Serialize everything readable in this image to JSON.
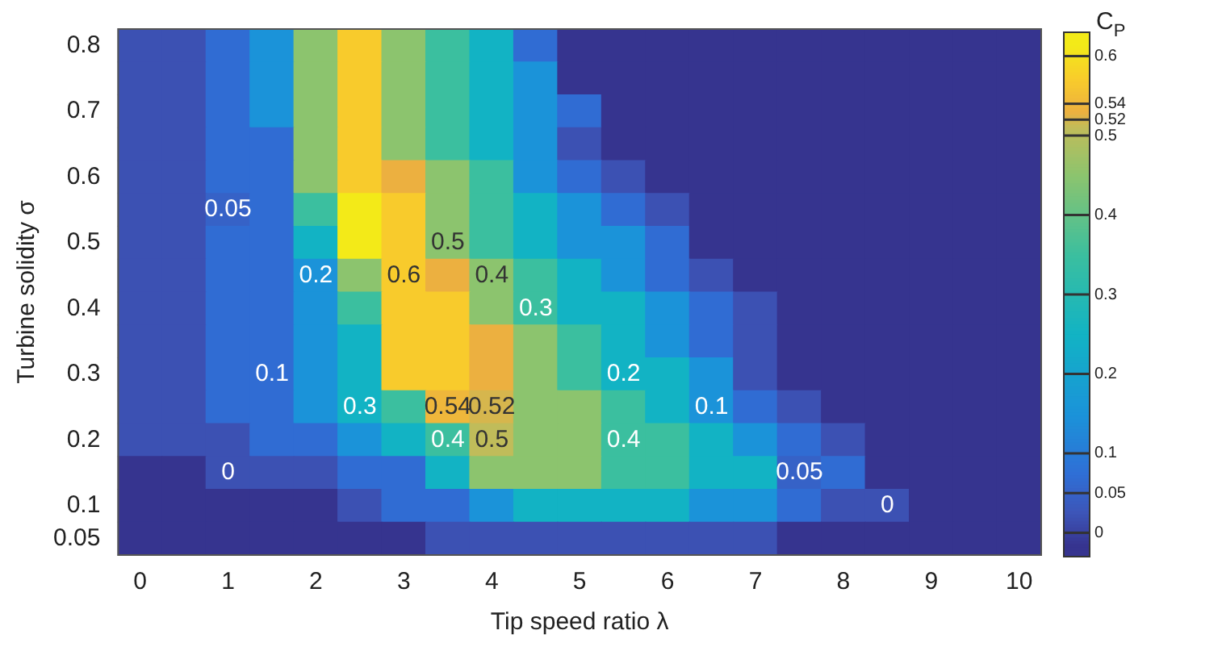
{
  "chart_data": {
    "type": "heatmap",
    "xlabel": "Tip speed ratio λ",
    "ylabel": "Turbine solidity σ",
    "clabel": "C$_{P}$",
    "categories": [
      "0",
      null,
      "1",
      null,
      "2",
      null,
      "3",
      null,
      "4",
      null,
      "5",
      null,
      "6",
      null,
      "7",
      null,
      "8",
      null,
      "9",
      null,
      "10"
    ],
    "y_categories": [
      "0.8",
      null,
      "0.7",
      null,
      "0.6",
      null,
      "0.5",
      null,
      "0.4",
      null,
      "0.3",
      null,
      "0.2",
      null,
      "0.1",
      "0.05"
    ],
    "clim": [
      -0.03,
      0.63
    ],
    "cticks": [
      0,
      0.05,
      0.1,
      0.2,
      0.3,
      0.4,
      0.5,
      0.52,
      0.54,
      0.6
    ],
    "colors": [
      "#36348f",
      "#3d55b8",
      "#2f6fd6",
      "#1b93d9",
      "#12b3c4",
      "#3bbf9f",
      "#8cc46e",
      "#c0bc5a",
      "#ecb040",
      "#f8cb2c",
      "#f3ea18"
    ],
    "cells": [
      [
        0.02,
        0.02,
        0.07,
        0.15,
        0.45,
        0.57,
        0.45,
        0.35,
        0.25,
        0.07,
        -0.02,
        -0.02,
        -0.02,
        -0.02,
        -0.02,
        -0.02,
        -0.02,
        -0.02,
        -0.02,
        -0.02,
        -0.02
      ],
      [
        0.02,
        0.02,
        0.07,
        0.15,
        0.45,
        0.57,
        0.45,
        0.35,
        0.25,
        0.15,
        -0.02,
        -0.02,
        -0.02,
        -0.02,
        -0.02,
        -0.02,
        -0.02,
        -0.02,
        -0.02,
        -0.02,
        -0.02
      ],
      [
        0.02,
        0.02,
        0.07,
        0.15,
        0.45,
        0.57,
        0.45,
        0.35,
        0.25,
        0.15,
        0.07,
        -0.02,
        -0.02,
        -0.02,
        -0.02,
        -0.02,
        -0.02,
        -0.02,
        -0.02,
        -0.02,
        -0.02
      ],
      [
        0.02,
        0.02,
        0.07,
        0.07,
        0.45,
        0.57,
        0.45,
        0.35,
        0.25,
        0.15,
        0.02,
        -0.02,
        -0.02,
        -0.02,
        -0.02,
        -0.02,
        -0.02,
        -0.02,
        -0.02,
        -0.02,
        -0.02
      ],
      [
        0.02,
        0.02,
        0.07,
        0.07,
        0.45,
        0.57,
        0.53,
        0.45,
        0.35,
        0.15,
        0.07,
        0.02,
        -0.02,
        -0.02,
        -0.02,
        -0.02,
        -0.02,
        -0.02,
        -0.02,
        -0.02,
        -0.02
      ],
      [
        0.02,
        0.02,
        0.05,
        0.07,
        0.35,
        0.62,
        0.57,
        0.45,
        0.35,
        0.25,
        0.15,
        0.07,
        0.02,
        -0.02,
        -0.02,
        -0.02,
        -0.02,
        -0.02,
        -0.02,
        -0.02,
        -0.02
      ],
      [
        0.02,
        0.02,
        0.07,
        0.07,
        0.25,
        0.62,
        0.57,
        0.45,
        0.35,
        0.25,
        0.15,
        0.15,
        0.07,
        -0.02,
        -0.02,
        -0.02,
        -0.02,
        -0.02,
        -0.02,
        -0.02,
        -0.02
      ],
      [
        0.02,
        0.02,
        0.07,
        0.07,
        0.15,
        0.45,
        0.57,
        0.53,
        0.45,
        0.35,
        0.25,
        0.15,
        0.07,
        0.02,
        -0.02,
        -0.02,
        -0.02,
        -0.02,
        -0.02,
        -0.02,
        -0.02
      ],
      [
        0.02,
        0.02,
        0.07,
        0.07,
        0.15,
        0.35,
        0.57,
        0.57,
        0.45,
        0.35,
        0.25,
        0.25,
        0.15,
        0.07,
        0.02,
        -0.02,
        -0.02,
        -0.02,
        -0.02,
        -0.02,
        -0.02
      ],
      [
        0.02,
        0.02,
        0.07,
        0.07,
        0.15,
        0.25,
        0.57,
        0.57,
        0.53,
        0.45,
        0.35,
        0.25,
        0.15,
        0.07,
        0.02,
        -0.02,
        -0.02,
        -0.02,
        -0.02,
        -0.02,
        -0.02
      ],
      [
        0.02,
        0.02,
        0.07,
        0.07,
        0.15,
        0.25,
        0.57,
        0.57,
        0.53,
        0.45,
        0.35,
        0.25,
        0.25,
        0.15,
        0.02,
        -0.02,
        -0.02,
        -0.02,
        -0.02,
        -0.02,
        -0.02
      ],
      [
        0.02,
        0.02,
        0.07,
        0.07,
        0.15,
        0.25,
        0.35,
        0.54,
        0.52,
        0.45,
        0.45,
        0.35,
        0.25,
        0.15,
        0.07,
        0.02,
        -0.02,
        -0.02,
        -0.02,
        -0.02,
        -0.02
      ],
      [
        0.02,
        0.02,
        0.02,
        0.07,
        0.07,
        0.15,
        0.25,
        0.35,
        0.51,
        0.45,
        0.45,
        0.35,
        0.35,
        0.25,
        0.15,
        0.07,
        0.02,
        -0.02,
        -0.02,
        -0.02,
        -0.02
      ],
      [
        -0.02,
        -0.02,
        0.02,
        0.02,
        0.02,
        0.07,
        0.07,
        0.25,
        0.45,
        0.45,
        0.45,
        0.35,
        0.35,
        0.25,
        0.25,
        0.05,
        0.07,
        -0.02,
        -0.02,
        -0.02,
        -0.02
      ],
      [
        -0.02,
        -0.02,
        -0.02,
        -0.02,
        -0.02,
        0.02,
        0.07,
        0.07,
        0.15,
        0.25,
        0.25,
        0.25,
        0.25,
        0.15,
        0.15,
        0.07,
        0.02,
        0.02,
        -0.02,
        -0.02,
        -0.02
      ],
      [
        -0.02,
        -0.02,
        -0.02,
        -0.02,
        -0.02,
        -0.02,
        -0.02,
        0.02,
        0.02,
        0.02,
        0.02,
        0.02,
        0.02,
        0.02,
        0.02,
        -0.02,
        -0.02,
        -0.02,
        -0.02,
        -0.02,
        -0.02
      ]
    ],
    "cell_labels": [
      [
        null,
        null,
        null,
        null,
        null,
        null,
        null,
        null,
        null,
        null,
        null,
        null,
        null,
        null,
        null,
        null,
        null,
        null,
        null,
        null,
        null
      ],
      [
        null,
        null,
        null,
        null,
        null,
        null,
        null,
        null,
        null,
        null,
        null,
        null,
        null,
        null,
        null,
        null,
        null,
        null,
        null,
        null,
        null
      ],
      [
        null,
        null,
        null,
        null,
        null,
        null,
        null,
        null,
        null,
        null,
        null,
        null,
        null,
        null,
        null,
        null,
        null,
        null,
        null,
        null,
        null
      ],
      [
        null,
        null,
        null,
        null,
        null,
        null,
        null,
        null,
        null,
        null,
        null,
        null,
        null,
        null,
        null,
        null,
        null,
        null,
        null,
        null,
        null
      ],
      [
        null,
        null,
        null,
        null,
        null,
        null,
        null,
        null,
        null,
        null,
        null,
        null,
        null,
        null,
        null,
        null,
        null,
        null,
        null,
        null,
        null
      ],
      [
        null,
        null,
        "0.05",
        null,
        null,
        null,
        null,
        null,
        null,
        null,
        null,
        null,
        null,
        null,
        null,
        null,
        null,
        null,
        null,
        null,
        null
      ],
      [
        null,
        null,
        null,
        null,
        null,
        null,
        null,
        "0.5",
        null,
        null,
        null,
        null,
        null,
        null,
        null,
        null,
        null,
        null,
        null,
        null,
        null
      ],
      [
        null,
        null,
        null,
        null,
        "0.2",
        null,
        "0.6",
        null,
        "0.4",
        null,
        null,
        null,
        null,
        null,
        null,
        null,
        null,
        null,
        null,
        null,
        null
      ],
      [
        null,
        null,
        null,
        null,
        null,
        null,
        null,
        null,
        null,
        "0.3",
        null,
        null,
        null,
        null,
        null,
        null,
        null,
        null,
        null,
        null,
        null
      ],
      [
        null,
        null,
        null,
        null,
        null,
        null,
        null,
        null,
        null,
        null,
        null,
        null,
        null,
        null,
        null,
        null,
        null,
        null,
        null,
        null,
        null
      ],
      [
        null,
        null,
        null,
        "0.1",
        null,
        null,
        null,
        null,
        null,
        null,
        null,
        "0.2",
        null,
        null,
        null,
        null,
        null,
        null,
        null,
        null,
        null
      ],
      [
        null,
        null,
        null,
        null,
        null,
        "0.3",
        null,
        "0.54",
        "0.52",
        null,
        null,
        null,
        null,
        "0.1",
        null,
        null,
        null,
        null,
        null,
        null,
        null
      ],
      [
        null,
        null,
        null,
        null,
        null,
        null,
        null,
        "0.4",
        "0.5",
        null,
        null,
        "0.4",
        null,
        null,
        null,
        null,
        null,
        null,
        null,
        null,
        null
      ],
      [
        null,
        null,
        "0",
        null,
        null,
        null,
        null,
        null,
        null,
        null,
        null,
        null,
        null,
        null,
        null,
        "0.05",
        null,
        null,
        null,
        null,
        null
      ],
      [
        null,
        null,
        null,
        null,
        null,
        null,
        null,
        null,
        null,
        null,
        null,
        null,
        null,
        null,
        null,
        null,
        null,
        "0",
        null,
        null,
        null
      ],
      [
        null,
        null,
        null,
        null,
        null,
        null,
        null,
        null,
        null,
        null,
        null,
        null,
        null,
        null,
        null,
        null,
        null,
        null,
        null,
        null,
        null
      ]
    ]
  }
}
